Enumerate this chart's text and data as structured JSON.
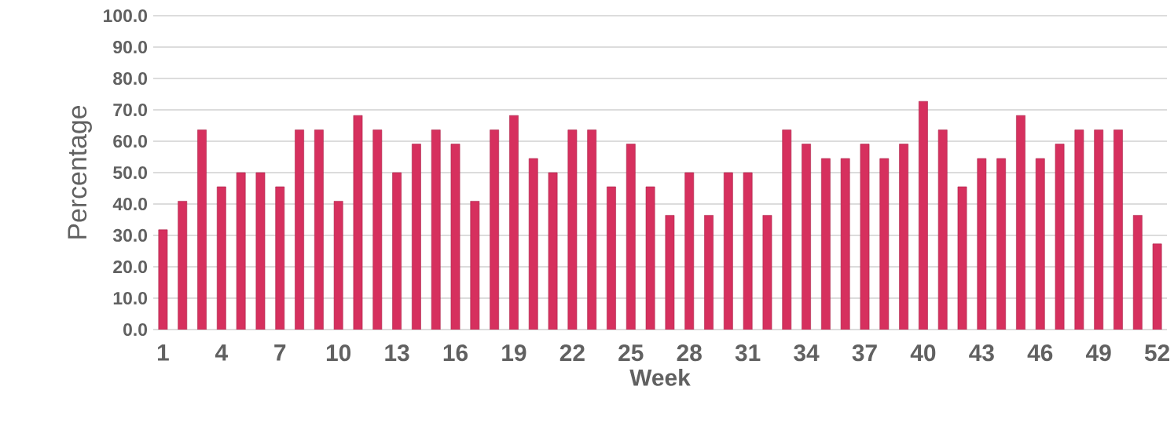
{
  "chart_data": {
    "type": "bar",
    "xlabel": "Week",
    "ylabel": "Percentage",
    "categories": [
      "1",
      null,
      null,
      "4",
      null,
      null,
      "7",
      null,
      null,
      "10",
      null,
      null,
      "13",
      null,
      null,
      "16",
      null,
      null,
      "19",
      null,
      null,
      "22",
      null,
      null,
      "25",
      null,
      null,
      "28",
      null,
      null,
      "31",
      null,
      null,
      "34",
      null,
      null,
      "37",
      null,
      null,
      "40",
      null,
      null,
      "43",
      null,
      null,
      "46",
      null,
      null,
      "49",
      null,
      null,
      "52"
    ],
    "values": [
      31.8,
      40.9,
      63.6,
      45.5,
      50.0,
      50.0,
      45.5,
      63.6,
      63.6,
      40.9,
      68.2,
      63.6,
      50.0,
      59.1,
      63.6,
      59.1,
      40.9,
      63.6,
      68.2,
      54.5,
      50.0,
      63.6,
      63.6,
      45.5,
      59.1,
      45.5,
      36.4,
      50.0,
      36.4,
      50.0,
      50.0,
      36.4,
      63.6,
      59.1,
      54.5,
      54.5,
      59.1,
      54.5,
      59.1,
      72.7,
      63.6,
      45.5,
      54.5,
      54.5,
      68.2,
      54.5,
      59.1,
      63.6,
      63.6,
      63.6,
      36.4,
      27.3
    ],
    "color": "#d6305e",
    "ylim": [
      0,
      100
    ],
    "yticks": [
      {
        "value": 0,
        "label": "0.0"
      },
      {
        "value": 10,
        "label": "10.0"
      },
      {
        "value": 20,
        "label": "20.0"
      },
      {
        "value": 30,
        "label": "30.0"
      },
      {
        "value": 40,
        "label": "40.0"
      },
      {
        "value": 50,
        "label": "50.0"
      },
      {
        "value": 60,
        "label": "60.0"
      },
      {
        "value": 70,
        "label": "70.0"
      },
      {
        "value": 80,
        "label": "80.0"
      },
      {
        "value": 90,
        "label": "90.0"
      },
      {
        "value": 100,
        "label": "100.0"
      }
    ],
    "grid": "y"
  }
}
